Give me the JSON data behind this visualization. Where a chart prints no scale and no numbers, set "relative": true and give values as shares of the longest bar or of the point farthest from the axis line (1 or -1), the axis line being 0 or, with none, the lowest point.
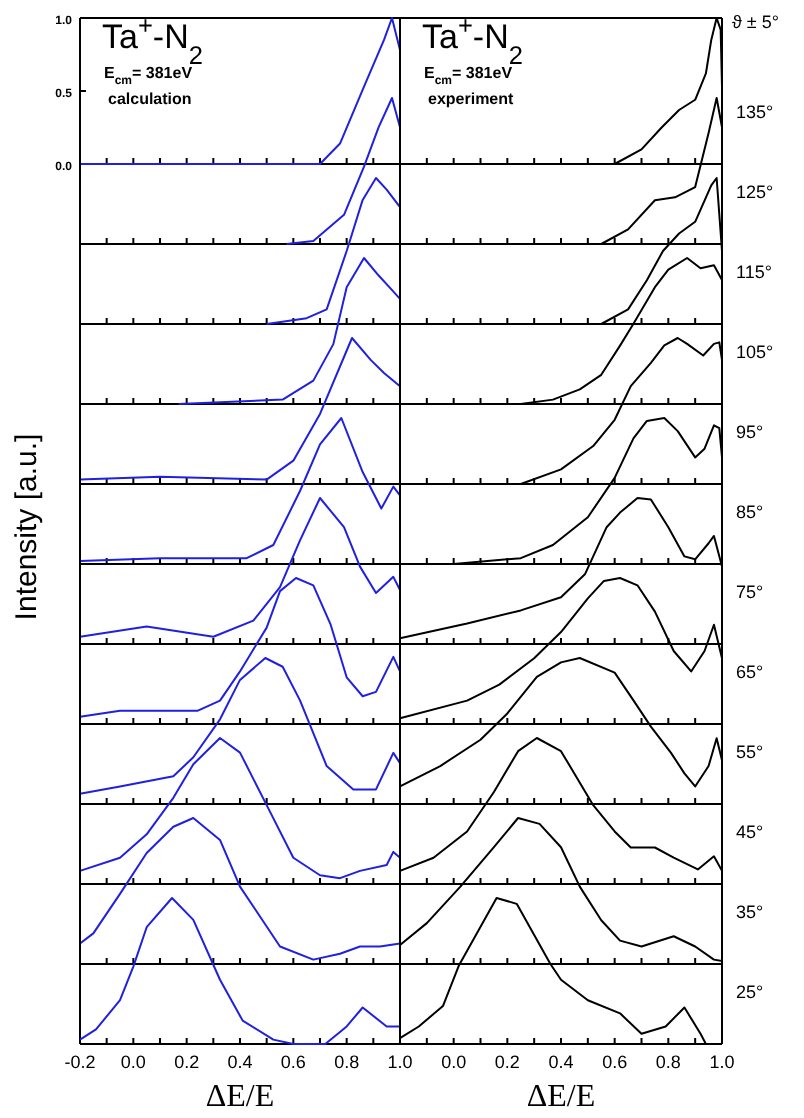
{
  "chart_data": [
    {
      "type": "line",
      "title": "Ta$^{+}$-N$_{2}$",
      "subtitle": "E$_{cm}$= 381eV",
      "annotations": [
        "calculation"
      ],
      "xlim": [
        -0.2,
        1
      ],
      "ylim": [
        0,
        1
      ],
      "yticks": [
        {
          "value": 0,
          "label": "0.0"
        },
        {
          "value": 0.5,
          "label": "0.5"
        },
        {
          "value": 1,
          "label": "1.0"
        }
      ],
      "xticks": [
        -0.2,
        -0.1,
        0,
        0.1,
        0.2,
        0.3,
        0.4,
        0.5,
        0.6,
        0.7,
        0.8,
        0.9,
        1
      ],
      "tick_labels": "y",
      "x": [
        -0.2,
        0.7,
        0.775,
        0.865,
        0.94,
        0.97,
        1.0
      ],
      "series": [
        {
          "color": "#2020e0",
          "values": [
            0,
            0,
            0.14,
            0.53,
            0.85,
            1.0,
            0.78
          ]
        }
      ]
    },
    {
      "type": "line",
      "relative": true,
      "title": "Ta$^{+}$-N$_{2}$",
      "subtitle": "E$_{cm}$= 381eV",
      "annotations": [
        "experiment",
        "ϑ ± 5°"
      ],
      "y2label": "135°",
      "xlim": [
        -0.2,
        1
      ],
      "xticks": [
        -0.2,
        -0.1,
        0,
        0.1,
        0.2,
        0.3,
        0.4,
        0.5,
        0.6,
        0.7,
        0.8,
        0.9,
        1
      ],
      "tick_labels": false,
      "x": [
        0.6,
        0.7,
        0.775,
        0.84,
        0.9,
        0.94,
        0.96,
        0.98,
        0.995,
        1.0
      ],
      "series": [
        {
          "color": "#000000",
          "values": [
            0,
            0.1,
            0.25,
            0.37,
            0.44,
            0.62,
            0.85,
            1.0,
            0.92,
            0.53
          ]
        }
      ]
    },
    {
      "type": "line",
      "relative": true,
      "xlim": [
        -0.2,
        1
      ],
      "xticks": [
        -0.2,
        -0.1,
        0,
        0.1,
        0.2,
        0.3,
        0.4,
        0.5,
        0.6,
        0.7,
        0.8,
        0.9,
        1
      ],
      "tick_labels": false,
      "x": [
        0.575,
        0.675,
        0.79,
        0.865,
        0.92,
        0.97,
        1.0
      ],
      "series": [
        {
          "color": "#2020e0",
          "values": [
            0,
            0.02,
            0.2,
            0.53,
            0.8,
            1.0,
            0.8
          ]
        }
      ]
    },
    {
      "type": "line",
      "relative": true,
      "y2label": "125°",
      "xlim": [
        -0.2,
        1
      ],
      "xticks": [
        -0.2,
        -0.1,
        0,
        0.1,
        0.2,
        0.3,
        0.4,
        0.5,
        0.6,
        0.7,
        0.8,
        0.9,
        1
      ],
      "tick_labels": false,
      "x": [
        0.55,
        0.65,
        0.75,
        0.825,
        0.9,
        0.95,
        0.98,
        1.0
      ],
      "series": [
        {
          "color": "#000000",
          "values": [
            0,
            0.1,
            0.3,
            0.32,
            0.39,
            0.76,
            1.0,
            0.8
          ]
        }
      ]
    },
    {
      "type": "line",
      "relative": true,
      "xlim": [
        -0.2,
        1
      ],
      "xticks": [
        -0.2,
        -0.1,
        0,
        0.1,
        0.2,
        0.3,
        0.4,
        0.5,
        0.6,
        0.7,
        0.8,
        0.9,
        1
      ],
      "tick_labels": false,
      "x": [
        0.5,
        0.65,
        0.725,
        0.8,
        0.86,
        0.91,
        0.95,
        1.0
      ],
      "series": [
        {
          "color": "#2020e0",
          "values": [
            0,
            0.04,
            0.1,
            0.5,
            0.85,
            1.0,
            0.92,
            0.8
          ]
        }
      ]
    },
    {
      "type": "line",
      "relative": true,
      "y2label": "115°",
      "xlim": [
        -0.2,
        1
      ],
      "xticks": [
        -0.2,
        -0.1,
        0,
        0.1,
        0.2,
        0.3,
        0.4,
        0.5,
        0.6,
        0.7,
        0.8,
        0.9,
        1
      ],
      "tick_labels": false,
      "x": [
        0.55,
        0.65,
        0.72,
        0.78,
        0.84,
        0.9,
        0.96,
        0.98,
        1.0
      ],
      "series": [
        {
          "color": "#000000",
          "values": [
            0,
            0.1,
            0.3,
            0.5,
            0.62,
            0.7,
            0.95,
            1.0,
            0.5
          ]
        }
      ]
    },
    {
      "type": "line",
      "relative": true,
      "xlim": [
        -0.2,
        1
      ],
      "xticks": [
        -0.2,
        -0.1,
        0,
        0.1,
        0.2,
        0.3,
        0.4,
        0.5,
        0.6,
        0.7,
        0.8,
        0.9,
        1
      ],
      "tick_labels": false,
      "x": [
        0.17,
        0.56,
        0.675,
        0.75,
        0.8,
        0.865,
        0.92,
        0.96,
        1.0
      ],
      "series": [
        {
          "color": "#2020e0",
          "values": [
            0,
            0.03,
            0.16,
            0.41,
            0.8,
            1.0,
            0.88,
            0.8,
            0.72
          ]
        }
      ]
    },
    {
      "type": "line",
      "relative": true,
      "y2label": "105°",
      "xlim": [
        -0.2,
        1
      ],
      "xticks": [
        -0.2,
        -0.1,
        0,
        0.1,
        0.2,
        0.3,
        0.4,
        0.5,
        0.6,
        0.7,
        0.8,
        0.9,
        1
      ],
      "tick_labels": false,
      "x": [
        0.25,
        0.37,
        0.47,
        0.55,
        0.62,
        0.67,
        0.75,
        0.8,
        0.87,
        0.92,
        0.97,
        1.0
      ],
      "series": [
        {
          "color": "#000000",
          "values": [
            0,
            0.03,
            0.1,
            0.2,
            0.4,
            0.55,
            0.8,
            0.92,
            1.0,
            0.93,
            0.95,
            0.85
          ]
        }
      ]
    },
    {
      "type": "line",
      "relative": true,
      "xlim": [
        -0.2,
        1
      ],
      "xticks": [
        -0.2,
        -0.1,
        0,
        0.1,
        0.2,
        0.3,
        0.4,
        0.5,
        0.6,
        0.7,
        0.8,
        0.9,
        1
      ],
      "tick_labels": false,
      "x": [
        -0.2,
        0.1,
        0.5,
        0.6,
        0.7,
        0.82,
        0.89,
        0.94,
        1.0
      ],
      "series": [
        {
          "color": "#2020e0",
          "values": [
            0.03,
            0.05,
            0.03,
            0.16,
            0.48,
            1.0,
            0.85,
            0.76,
            0.67
          ]
        }
      ]
    },
    {
      "type": "line",
      "relative": true,
      "y2label": "95°",
      "xlim": [
        -0.2,
        1
      ],
      "xticks": [
        -0.2,
        -0.1,
        0,
        0.1,
        0.2,
        0.3,
        0.4,
        0.5,
        0.6,
        0.7,
        0.8,
        0.9,
        1
      ],
      "tick_labels": false,
      "x": [
        0.25,
        0.4,
        0.52,
        0.6,
        0.66,
        0.735,
        0.785,
        0.835,
        0.87,
        0.93,
        0.97,
        0.99,
        1.0
      ],
      "series": [
        {
          "color": "#000000",
          "values": [
            0,
            0.1,
            0.26,
            0.44,
            0.67,
            0.83,
            0.95,
            1.0,
            0.96,
            0.88,
            0.96,
            0.97,
            0.85
          ]
        }
      ]
    },
    {
      "type": "line",
      "relative": true,
      "ylabel": "Intensity [a.u.]",
      "xlim": [
        -0.2,
        1
      ],
      "xticks": [
        -0.2,
        -0.1,
        0,
        0.1,
        0.2,
        0.3,
        0.4,
        0.5,
        0.6,
        0.7,
        0.8,
        0.9,
        1
      ],
      "tick_labels": false,
      "x": [
        -0.2,
        0.1,
        0.425,
        0.525,
        0.625,
        0.7,
        0.78,
        0.86,
        0.93,
        0.975,
        1.0
      ],
      "series": [
        {
          "color": "#2020e0",
          "values": [
            0.02,
            0.04,
            0.04,
            0.13,
            0.5,
            0.82,
            1.0,
            0.63,
            0.38,
            0.53,
            0.47
          ]
        }
      ]
    },
    {
      "type": "line",
      "relative": true,
      "y2label": "85°",
      "xlim": [
        -0.2,
        1
      ],
      "xticks": [
        -0.2,
        -0.1,
        0,
        0.1,
        0.2,
        0.3,
        0.4,
        0.5,
        0.6,
        0.7,
        0.8,
        0.9,
        1
      ],
      "tick_labels": false,
      "x": [
        0.0,
        0.25,
        0.37,
        0.5,
        0.6,
        0.67,
        0.72,
        0.785,
        0.835,
        0.9,
        0.935,
        0.97,
        0.99,
        1.0
      ],
      "series": [
        {
          "color": "#000000",
          "values": [
            0,
            0.04,
            0.13,
            0.32,
            0.59,
            0.86,
            0.98,
            1.0,
            0.91,
            0.73,
            0.79,
            0.95,
            0.93,
            0.73
          ]
        }
      ]
    },
    {
      "type": "line",
      "relative": true,
      "xlim": [
        -0.2,
        1
      ],
      "xticks": [
        -0.2,
        -0.1,
        0,
        0.1,
        0.2,
        0.3,
        0.4,
        0.5,
        0.6,
        0.7,
        0.8,
        0.9,
        1
      ],
      "tick_labels": false,
      "x": [
        -0.2,
        0.05,
        0.3,
        0.45,
        0.55,
        0.625,
        0.7,
        0.79,
        0.85,
        0.91,
        0.975,
        1.0
      ],
      "series": [
        {
          "color": "#2020e0",
          "values": [
            0.05,
            0.12,
            0.05,
            0.16,
            0.39,
            0.71,
            1.0,
            0.8,
            0.53,
            0.35,
            0.46,
            0.37
          ]
        }
      ]
    },
    {
      "type": "line",
      "relative": true,
      "y2label": "75°",
      "xlim": [
        -0.2,
        1
      ],
      "xticks": [
        -0.2,
        -0.1,
        0,
        0.1,
        0.2,
        0.3,
        0.4,
        0.5,
        0.6,
        0.7,
        0.8,
        0.9,
        1
      ],
      "tick_labels": false,
      "x": [
        -0.2,
        0.05,
        0.25,
        0.4,
        0.49,
        0.57,
        0.62,
        0.685,
        0.735,
        0.8,
        0.86,
        0.9,
        0.95,
        0.97,
        1.0
      ],
      "series": [
        {
          "color": "#000000",
          "values": [
            0.04,
            0.14,
            0.23,
            0.32,
            0.48,
            0.8,
            0.9,
            1.0,
            0.99,
            0.8,
            0.6,
            0.58,
            0.69,
            0.74,
            0.53
          ]
        }
      ]
    },
    {
      "type": "line",
      "relative": true,
      "xlim": [
        -0.2,
        1
      ],
      "xticks": [
        -0.2,
        -0.1,
        0,
        0.1,
        0.2,
        0.3,
        0.4,
        0.5,
        0.6,
        0.7,
        0.8,
        0.9,
        1
      ],
      "tick_labels": false,
      "x": [
        -0.2,
        -0.05,
        0.24,
        0.325,
        0.4,
        0.5,
        0.55,
        0.61,
        0.675,
        0.74,
        0.8,
        0.86,
        0.91,
        0.975,
        1.0
      ],
      "series": [
        {
          "color": "#2020e0",
          "values": [
            0.05,
            0.09,
            0.09,
            0.16,
            0.36,
            0.66,
            0.91,
            1.0,
            0.95,
            0.68,
            0.32,
            0.19,
            0.22,
            0.46,
            0.36
          ]
        }
      ]
    },
    {
      "type": "line",
      "relative": true,
      "y2label": "65°",
      "xlim": [
        -0.2,
        1
      ],
      "xticks": [
        -0.2,
        -0.1,
        0,
        0.1,
        0.2,
        0.3,
        0.4,
        0.5,
        0.6,
        0.7,
        0.8,
        0.9,
        1
      ],
      "tick_labels": false,
      "x": [
        -0.2,
        0.05,
        0.17,
        0.3,
        0.4,
        0.5,
        0.56,
        0.62,
        0.685,
        0.75,
        0.82,
        0.885,
        0.935,
        0.97,
        1.0
      ],
      "series": [
        {
          "color": "#000000",
          "values": [
            0.04,
            0.16,
            0.27,
            0.45,
            0.63,
            0.86,
            0.98,
            1.0,
            0.95,
            0.77,
            0.5,
            0.36,
            0.5,
            0.68,
            0.45
          ]
        }
      ]
    },
    {
      "type": "line",
      "relative": true,
      "xlim": [
        -0.2,
        1
      ],
      "xticks": [
        -0.2,
        -0.1,
        0,
        0.1,
        0.2,
        0.3,
        0.4,
        0.5,
        0.6,
        0.7,
        0.8,
        0.9,
        1
      ],
      "tick_labels": false,
      "x": [
        -0.2,
        -0.05,
        0.15,
        0.225,
        0.325,
        0.4,
        0.495,
        0.56,
        0.625,
        0.725,
        0.825,
        0.91,
        0.975,
        1.0
      ],
      "series": [
        {
          "color": "#2020e0",
          "values": [
            0.07,
            0.12,
            0.19,
            0.32,
            0.58,
            0.85,
            1.0,
            0.94,
            0.71,
            0.26,
            0.1,
            0.1,
            0.35,
            0.28
          ]
        }
      ]
    },
    {
      "type": "line",
      "relative": true,
      "y2label": "55°",
      "xlim": [
        -0.2,
        1
      ],
      "xticks": [
        -0.2,
        -0.1,
        0,
        0.1,
        0.2,
        0.3,
        0.4,
        0.5,
        0.6,
        0.7,
        0.8,
        0.9,
        1
      ],
      "tick_labels": false,
      "x": [
        -0.2,
        -0.05,
        0.1,
        0.2,
        0.31,
        0.4,
        0.47,
        0.6,
        0.67,
        0.735,
        0.81,
        0.86,
        0.9,
        0.95,
        0.98,
        1.0
      ],
      "series": [
        {
          "color": "#000000",
          "values": [
            0.12,
            0.26,
            0.44,
            0.62,
            0.87,
            0.97,
            1.0,
            0.9,
            0.71,
            0.53,
            0.35,
            0.21,
            0.12,
            0.26,
            0.45,
            0.3
          ]
        }
      ]
    },
    {
      "type": "line",
      "relative": true,
      "xlim": [
        -0.2,
        1
      ],
      "xticks": [
        -0.2,
        -0.1,
        0,
        0.1,
        0.2,
        0.3,
        0.4,
        0.5,
        0.6,
        0.7,
        0.8,
        0.9,
        1
      ],
      "tick_labels": false,
      "x": [
        -0.2,
        -0.05,
        0.05,
        0.15,
        0.225,
        0.325,
        0.4,
        0.5,
        0.6,
        0.7,
        0.775,
        0.85,
        0.95,
        0.975,
        1.0
      ],
      "series": [
        {
          "color": "#2020e0",
          "values": [
            0.09,
            0.18,
            0.34,
            0.59,
            0.82,
            1.0,
            0.9,
            0.54,
            0.18,
            0.06,
            0.04,
            0.09,
            0.13,
            0.22,
            0.18
          ]
        }
      ]
    },
    {
      "type": "line",
      "relative": true,
      "y2label": "45°",
      "xlim": [
        -0.2,
        1
      ],
      "xticks": [
        -0.2,
        -0.1,
        0,
        0.1,
        0.2,
        0.3,
        0.4,
        0.5,
        0.6,
        0.7,
        0.8,
        0.9,
        1
      ],
      "tick_labels": false,
      "x": [
        -0.2,
        -0.075,
        0.05,
        0.15,
        0.24,
        0.31,
        0.4,
        0.52,
        0.6,
        0.66,
        0.75,
        0.82,
        0.91,
        0.97,
        1.0
      ],
      "series": [
        {
          "color": "#000000",
          "values": [
            0.09,
            0.18,
            0.36,
            0.63,
            0.91,
            1.0,
            0.91,
            0.54,
            0.36,
            0.25,
            0.25,
            0.18,
            0.1,
            0.19,
            0.09
          ]
        }
      ]
    },
    {
      "type": "line",
      "relative": true,
      "xlim": [
        -0.2,
        1
      ],
      "xticks": [
        -0.2,
        -0.1,
        0,
        0.1,
        0.2,
        0.3,
        0.4,
        0.5,
        0.6,
        0.7,
        0.8,
        0.9,
        1
      ],
      "tick_labels": false,
      "x": [
        -0.2,
        -0.15,
        -0.05,
        0.05,
        0.15,
        0.225,
        0.325,
        0.4,
        0.55,
        0.675,
        0.775,
        0.85,
        0.925,
        1.0
      ],
      "series": [
        {
          "color": "#2020e0",
          "values": [
            0.14,
            0.21,
            0.48,
            0.76,
            0.94,
            1.0,
            0.85,
            0.53,
            0.12,
            0.03,
            0.07,
            0.12,
            0.12,
            0.14
          ]
        }
      ]
    },
    {
      "type": "line",
      "relative": true,
      "y2label": "35°",
      "xlim": [
        -0.2,
        1
      ],
      "xticks": [
        -0.2,
        -0.1,
        0,
        0.1,
        0.2,
        0.3,
        0.4,
        0.5,
        0.6,
        0.7,
        0.8,
        0.9,
        1
      ],
      "tick_labels": false,
      "x": [
        -0.2,
        -0.1,
        0.025,
        0.15,
        0.24,
        0.32,
        0.4,
        0.47,
        0.55,
        0.62,
        0.7,
        0.82,
        0.9,
        0.97,
        1.0
      ],
      "series": [
        {
          "color": "#000000",
          "values": [
            0.13,
            0.28,
            0.53,
            0.8,
            1.0,
            0.96,
            0.8,
            0.53,
            0.3,
            0.16,
            0.12,
            0.19,
            0.12,
            0.03,
            0.02
          ]
        }
      ]
    },
    {
      "type": "line",
      "relative": true,
      "xlabel": "ΔE/E",
      "xlim": [
        -0.2,
        1
      ],
      "xticks": [
        -0.2,
        {
          "value": -0.1,
          "label": null
        },
        {
          "value": 0,
          "label": "0.0"
        },
        {
          "value": 0.1,
          "label": null
        },
        0.2,
        {
          "value": 0.3,
          "label": null
        },
        0.4,
        {
          "value": 0.5,
          "label": null
        },
        0.6,
        {
          "value": 0.7,
          "label": null
        },
        0.8,
        {
          "value": 0.9,
          "label": null
        },
        {
          "value": 1,
          "label": "1.0"
        }
      ],
      "tick_labels": "x",
      "x": [
        -0.2,
        -0.14,
        -0.05,
        0.0,
        0.05,
        0.145,
        0.225,
        0.325,
        0.41,
        0.525,
        0.6,
        0.72,
        0.8,
        0.86,
        0.95,
        1.0
      ],
      "series": [
        {
          "color": "#2020e0",
          "values": [
            0.03,
            0.1,
            0.3,
            0.53,
            0.8,
            1.0,
            0.85,
            0.44,
            0.16,
            0.03,
            0,
            0,
            0.12,
            0.25,
            0.12,
            0.12
          ]
        }
      ]
    },
    {
      "type": "line",
      "relative": true,
      "xlabel": "ΔE/E",
      "y2label": "25°",
      "xlim": [
        -0.2,
        1
      ],
      "xticks": [
        {
          "value": -0.2,
          "label": null
        },
        {
          "value": -0.1,
          "label": null
        },
        {
          "value": 0,
          "label": "0.0"
        },
        {
          "value": 0.1,
          "label": null
        },
        0.2,
        {
          "value": 0.3,
          "label": null
        },
        0.4,
        {
          "value": 0.5,
          "label": null
        },
        0.6,
        {
          "value": 0.7,
          "label": null
        },
        0.8,
        {
          "value": 0.9,
          "label": null
        },
        {
          "value": 1,
          "label": "1.0"
        }
      ],
      "tick_labels": "x",
      "x": [
        -0.2,
        -0.13,
        -0.04,
        0.02,
        0.16,
        0.235,
        0.36,
        0.4,
        0.5,
        0.62,
        0.7,
        0.79,
        0.86,
        0.92,
        0.94
      ],
      "series": [
        {
          "color": "#000000",
          "values": [
            0.04,
            0.12,
            0.26,
            0.54,
            1.0,
            0.96,
            0.55,
            0.44,
            0.3,
            0.21,
            0.07,
            0.12,
            0.25,
            0.07,
            0
          ]
        }
      ]
    }
  ]
}
